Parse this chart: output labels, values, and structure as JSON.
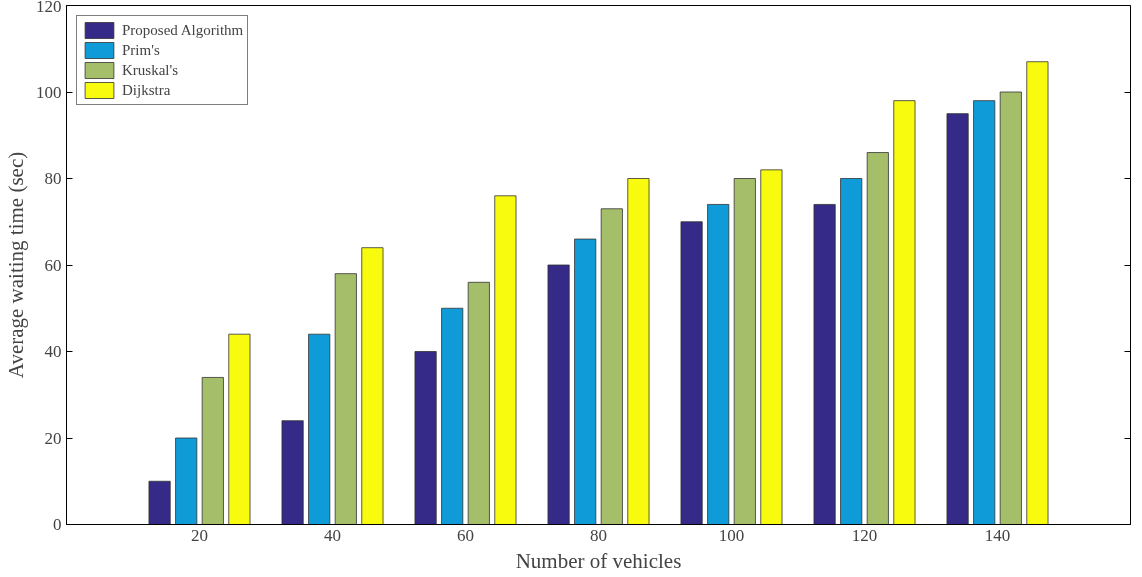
{
  "chart_data": {
    "type": "bar",
    "xlabel": "Number of vehicles",
    "ylabel": "Average waiting time (sec)",
    "categories": [
      "20",
      "40",
      "60",
      "80",
      "100",
      "120",
      "140"
    ],
    "series": [
      {
        "name": "Proposed Algorithm",
        "color": "#352a87",
        "values": [
          10,
          24,
          40,
          60,
          70,
          74,
          95
        ]
      },
      {
        "name": "Prim's",
        "color": "#0f9bd7",
        "values": [
          20,
          44,
          50,
          66,
          74,
          80,
          98
        ]
      },
      {
        "name": "Kruskal's",
        "color": "#a5be6a",
        "values": [
          34,
          58,
          56,
          73,
          80,
          86,
          100
        ]
      },
      {
        "name": "Dijkstra",
        "color": "#f9fb0e",
        "values": [
          44,
          64,
          76,
          80,
          82,
          98,
          107
        ]
      }
    ],
    "ylim": [
      0,
      120
    ],
    "yticks": [
      0,
      20,
      40,
      60,
      80,
      100,
      120
    ],
    "grid": false,
    "legend": "top left"
  }
}
